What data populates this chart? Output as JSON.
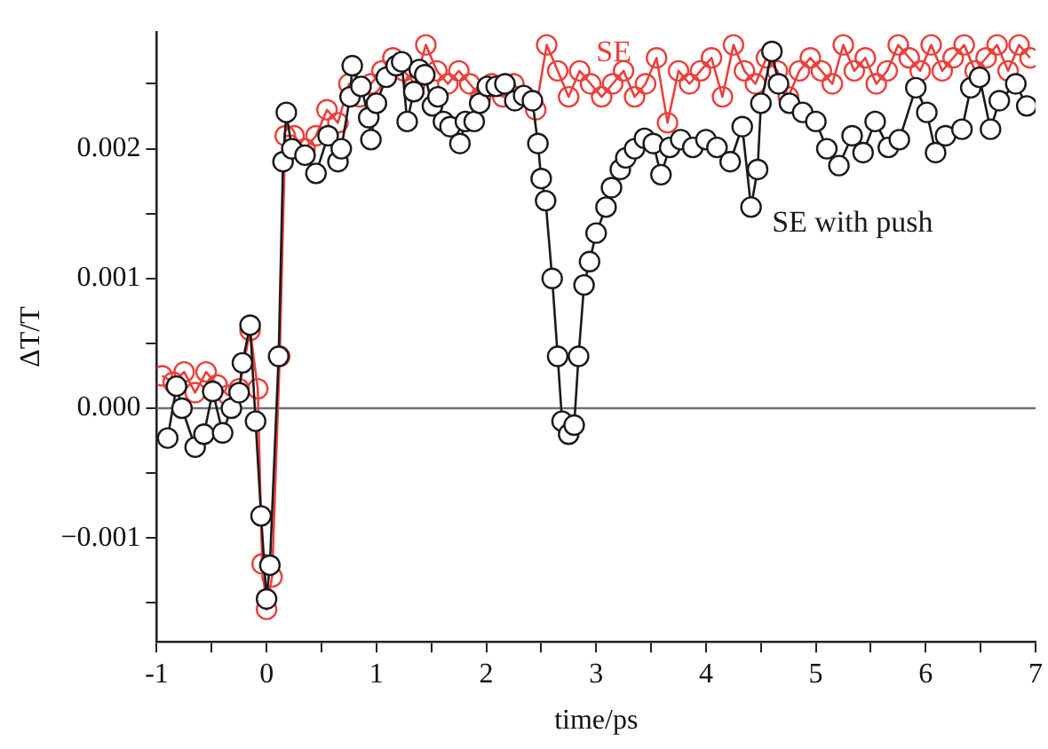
{
  "chart_data": {
    "type": "line",
    "xlabel": "time/ps",
    "ylabel": "ΔT/T",
    "marker": "circle",
    "grid": false,
    "legend": false,
    "xlim": [
      -1,
      7
    ],
    "ylim": [
      -0.0018,
      0.0029
    ],
    "xticks": [
      -1,
      {
        "value": -0.5,
        "label": null
      },
      0,
      {
        "value": 0.5,
        "label": null
      },
      1,
      {
        "value": 1.5,
        "label": null
      },
      2,
      {
        "value": 2.5,
        "label": null
      },
      3,
      {
        "value": 3.5,
        "label": null
      },
      4,
      {
        "value": 4.5,
        "label": null
      },
      5,
      {
        "value": 5.5,
        "label": null
      },
      6,
      {
        "value": 6.5,
        "label": null
      },
      7
    ],
    "yticks": [
      {
        "value": -0.0015,
        "label": null
      },
      {
        "value": -0.001,
        "label": "−0.001"
      },
      {
        "value": -0.0005,
        "label": null
      },
      {
        "value": 0,
        "label": "0.000"
      },
      {
        "value": 0.0005,
        "label": null
      },
      {
        "value": 0.001,
        "label": "0.001"
      },
      {
        "value": 0.0015,
        "label": null
      },
      {
        "value": 0.002,
        "label": "0.002"
      },
      {
        "value": 0.0025,
        "label": null
      }
    ],
    "ref_lines": [
      {
        "axis": "y",
        "value": 0,
        "color": "#707070"
      }
    ],
    "series": [
      {
        "name": "SE",
        "color": "#e8413c",
        "x": [
          -0.95,
          -0.85,
          -0.75,
          -0.65,
          -0.55,
          -0.45,
          -0.35,
          -0.25,
          -0.15,
          -0.08,
          -0.04,
          0,
          0.05,
          0.12,
          0.17,
          0.25,
          0.35,
          0.45,
          0.55,
          0.65,
          0.75,
          0.85,
          0.95,
          1.05,
          1.15,
          1.25,
          1.35,
          1.45,
          1.55,
          1.65,
          1.75,
          1.85,
          1.95,
          2.05,
          2.15,
          2.25,
          2.35,
          2.45,
          2.55,
          2.65,
          2.75,
          2.85,
          2.95,
          3.05,
          3.15,
          3.25,
          3.35,
          3.45,
          3.55,
          3.65,
          3.75,
          3.85,
          3.95,
          4.05,
          4.15,
          4.25,
          4.35,
          4.45,
          4.55,
          4.65,
          4.75,
          4.85,
          4.95,
          5.05,
          5.15,
          5.25,
          5.35,
          5.45,
          5.55,
          5.65,
          5.75,
          5.85,
          5.95,
          6.05,
          6.15,
          6.25,
          6.35,
          6.45,
          6.55,
          6.65,
          6.75,
          6.85,
          6.95
        ],
        "values": [
          0.00025,
          0.0002,
          0.00028,
          0.00012,
          0.00028,
          0.00018,
          0.0001,
          0.00015,
          0.0006,
          0.00015,
          -0.0012,
          -0.00155,
          -0.0013,
          0.0004,
          0.0021,
          0.0021,
          0.002,
          0.0021,
          0.0023,
          0.0022,
          0.0025,
          0.0024,
          0.0025,
          0.0026,
          0.0027,
          0.0026,
          0.0025,
          0.0028,
          0.0026,
          0.0025,
          0.0026,
          0.0025,
          0.0024,
          0.0025,
          0.0024,
          0.0025,
          0.0024,
          0.0023,
          0.0028,
          0.0026,
          0.0024,
          0.0026,
          0.0025,
          0.0024,
          0.0025,
          0.0026,
          0.0024,
          0.0025,
          0.0027,
          0.0022,
          0.0026,
          0.0025,
          0.0026,
          0.0027,
          0.0024,
          0.0028,
          0.0026,
          0.0025,
          0.0027,
          0.0026,
          0.0024,
          0.0026,
          0.0027,
          0.0026,
          0.0025,
          0.0028,
          0.0026,
          0.0027,
          0.0025,
          0.0026,
          0.0028,
          0.0027,
          0.0026,
          0.0028,
          0.0026,
          0.0027,
          0.0028,
          0.0026,
          0.0027,
          0.0028,
          0.0026,
          0.0028,
          0.0027
        ]
      },
      {
        "name": "SE with push",
        "color": "#1a1a1a",
        "x": [
          -0.9,
          -0.82,
          -0.77,
          -0.65,
          -0.57,
          -0.49,
          -0.4,
          -0.32,
          -0.25,
          -0.22,
          -0.15,
          -0.1,
          -0.05,
          0,
          0.03,
          0.11,
          0.15,
          0.18,
          0.23,
          0.35,
          0.45,
          0.56,
          0.65,
          0.68,
          0.76,
          0.78,
          0.86,
          0.93,
          0.95,
          1,
          1.09,
          1.18,
          1.23,
          1.28,
          1.34,
          1.39,
          1.44,
          1.51,
          1.56,
          1.61,
          1.67,
          1.76,
          1.81,
          1.89,
          1.94,
          2.01,
          2.09,
          2.17,
          2.26,
          2.34,
          2.42,
          2.47,
          2.5,
          2.54,
          2.6,
          2.65,
          2.69,
          2.75,
          2.8,
          2.84,
          2.89,
          2.94,
          3,
          3.09,
          3.14,
          3.22,
          3.27,
          3.35,
          3.44,
          3.52,
          3.59,
          3.67,
          3.77,
          3.88,
          4,
          4.1,
          4.22,
          4.33,
          4.41,
          4.47,
          4.5,
          4.6,
          4.66,
          4.76,
          4.88,
          5,
          5.1,
          5.21,
          5.33,
          5.43,
          5.54,
          5.66,
          5.76,
          5.91,
          6.01,
          6.09,
          6.18,
          6.33,
          6.41,
          6.49,
          6.59,
          6.67,
          6.82,
          6.92
        ],
        "values": [
          -0.00023,
          0.00017,
          0,
          -0.0003,
          -0.0002,
          0.00013,
          -0.00019,
          0,
          0.00012,
          0.00035,
          0.00064,
          -0.0001,
          -0.00083,
          -0.00147,
          -0.00121,
          0.0004,
          0.0019,
          0.00228,
          0.002,
          0.00195,
          0.00181,
          0.0021,
          0.0019,
          0.002,
          0.0024,
          0.00264,
          0.00248,
          0.00224,
          0.00207,
          0.00235,
          0.00255,
          0.00264,
          0.00267,
          0.00221,
          0.00244,
          0.00261,
          0.00257,
          0.00233,
          0.0024,
          0.00221,
          0.00217,
          0.00204,
          0.00221,
          0.00221,
          0.00235,
          0.00248,
          0.00248,
          0.0025,
          0.00237,
          0.00241,
          0.00237,
          0.00204,
          0.00177,
          0.0016,
          0.001,
          0.0004,
          -0.0001,
          -0.0002,
          -0.00013,
          0.0004,
          0.00095,
          0.00113,
          0.00135,
          0.00155,
          0.0017,
          0.00184,
          0.00193,
          0.002,
          0.00208,
          0.00204,
          0.0018,
          0.00201,
          0.00207,
          0.00201,
          0.00207,
          0.00201,
          0.0019,
          0.00217,
          0.00155,
          0.00184,
          0.00235,
          0.00275,
          0.0025,
          0.00235,
          0.00228,
          0.00221,
          0.002,
          0.00187,
          0.0021,
          0.00197,
          0.00221,
          0.00201,
          0.00207,
          0.00247,
          0.00228,
          0.00197,
          0.0021,
          0.00215,
          0.00247,
          0.00255,
          0.00215,
          0.00237,
          0.0025,
          0.00233
        ]
      }
    ]
  }
}
